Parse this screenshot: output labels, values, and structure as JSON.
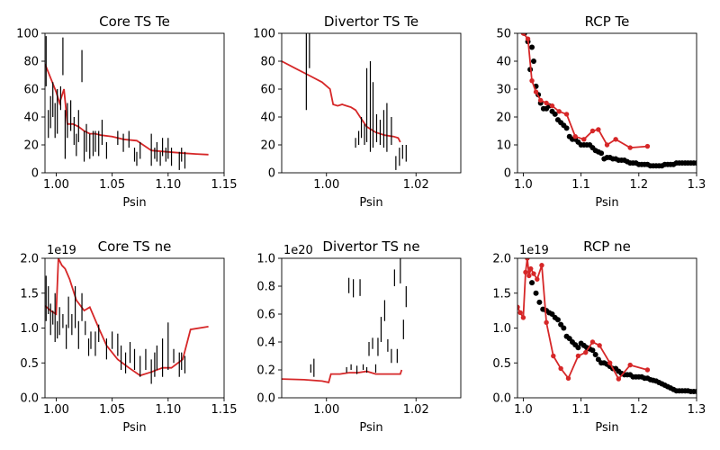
{
  "chart_data": [
    {
      "type": "line",
      "title": "Core TS Te",
      "xlabel": "Psin",
      "ylabel": "",
      "xlim": [
        0.99,
        1.15
      ],
      "ylim": [
        0,
        100
      ],
      "xticks": [
        1.0,
        1.05,
        1.1,
        1.15
      ],
      "xtick_labels": [
        "1.00",
        "1.05",
        "1.10",
        "1.15"
      ],
      "yticks": [
        0,
        20,
        40,
        60,
        80,
        100
      ],
      "ytick_labels": [
        "0",
        "20",
        "40",
        "60",
        "80",
        "100"
      ],
      "offset_label": "",
      "series": [
        {
          "kind": "fit_line",
          "color": "#d62728",
          "x": [
            0.99,
            0.995,
            1.0,
            1.003,
            1.007,
            1.01,
            1.015,
            1.02,
            1.025,
            1.03,
            1.035,
            1.04,
            1.05,
            1.06,
            1.072,
            1.085,
            1.1,
            1.115,
            1.125,
            1.136
          ],
          "y": [
            78,
            68,
            58,
            50,
            60,
            35,
            35,
            33,
            30,
            28,
            28,
            27,
            26,
            24,
            23,
            16,
            15,
            14,
            13.5,
            13
          ]
        },
        {
          "kind": "error_bars",
          "color": "#000000",
          "x": [
            0.991,
            0.993,
            0.995,
            0.997,
            0.999,
            1.001,
            1.004,
            1.006,
            1.008,
            1.01,
            1.013,
            1.016,
            1.018,
            1.02,
            1.023,
            1.025,
            1.027,
            1.03,
            1.033,
            1.035,
            1.038,
            1.041,
            1.045,
            1.055,
            1.06,
            1.065,
            1.07,
            1.072,
            1.075,
            1.085,
            1.088,
            1.09,
            1.093,
            1.095,
            1.098,
            1.1,
            1.103,
            1.11,
            1.112,
            1.115
          ],
          "low": [
            62,
            25,
            32,
            40,
            25,
            28,
            45,
            70,
            10,
            25,
            30,
            20,
            12,
            22,
            65,
            8,
            15,
            10,
            12,
            15,
            12,
            20,
            10,
            20,
            15,
            18,
            8,
            5,
            10,
            5,
            10,
            8,
            5,
            12,
            8,
            10,
            5,
            2,
            8,
            3
          ],
          "high": [
            98,
            45,
            55,
            65,
            50,
            60,
            62,
            97,
            45,
            50,
            52,
            40,
            28,
            45,
            88,
            30,
            35,
            28,
            30,
            30,
            30,
            38,
            22,
            30,
            28,
            30,
            18,
            15,
            22,
            28,
            18,
            22,
            15,
            25,
            18,
            25,
            18,
            15,
            18,
            15
          ]
        }
      ]
    },
    {
      "type": "line",
      "title": "Divertor TS Te",
      "xlabel": "Psin",
      "ylabel": "",
      "xlim": [
        0.99,
        1.03
      ],
      "ylim": [
        0,
        100
      ],
      "xticks": [
        1.0,
        1.02
      ],
      "xtick_labels": [
        "1.00",
        "1.02"
      ],
      "yticks": [
        0,
        20,
        40,
        60,
        80,
        100
      ],
      "ytick_labels": [
        "0",
        "20",
        "40",
        "60",
        "80",
        "100"
      ],
      "offset_label": "",
      "series": [
        {
          "kind": "fit_line",
          "color": "#d62728",
          "x": [
            0.99,
            0.993,
            0.996,
            0.999,
            1.0008,
            1.0015,
            1.0025,
            1.0035,
            1.0045,
            1.0055,
            1.0065,
            1.0075,
            1.009,
            1.011,
            1.013,
            1.015,
            1.016,
            1.0165
          ],
          "y": [
            80,
            75,
            70,
            65,
            60,
            49,
            48,
            49,
            48,
            47,
            45,
            40,
            33,
            29,
            27,
            26,
            25,
            22
          ]
        },
        {
          "kind": "error_bars",
          "color": "#000000",
          "x": [
            0.9955,
            0.9962,
            1.0065,
            1.0072,
            1.0078,
            1.0085,
            1.009,
            1.0098,
            1.0104,
            1.0112,
            1.012,
            1.0128,
            1.0135,
            1.0145,
            1.0155,
            1.0163,
            1.017,
            1.0178
          ],
          "low": [
            45,
            75,
            18,
            20,
            25,
            20,
            22,
            15,
            18,
            22,
            20,
            18,
            15,
            20,
            2,
            5,
            10,
            8
          ],
          "high": [
            100,
            100,
            25,
            30,
            40,
            35,
            75,
            80,
            65,
            42,
            38,
            45,
            50,
            40,
            12,
            18,
            20,
            20
          ]
        }
      ]
    },
    {
      "type": "scatter",
      "title": "RCP Te",
      "xlabel": "Psin",
      "ylabel": "",
      "xlim": [
        0.99,
        1.3
      ],
      "ylim": [
        0,
        50
      ],
      "xticks": [
        1.0,
        1.1,
        1.2,
        1.3
      ],
      "xtick_labels": [
        "1.0",
        "1.1",
        "1.2",
        "1.3"
      ],
      "yticks": [
        0,
        10,
        20,
        30,
        40,
        50
      ],
      "ytick_labels": [
        "0",
        "10",
        "20",
        "30",
        "40",
        "50"
      ],
      "offset_label": "",
      "series": [
        {
          "kind": "markers",
          "color": "#000000",
          "x": [
            1.002,
            1.008,
            1.012,
            1.015,
            1.018,
            1.022,
            1.026,
            1.03,
            1.035,
            1.04,
            1.045,
            1.05,
            1.055,
            1.06,
            1.065,
            1.07,
            1.075,
            1.08,
            1.085,
            1.09,
            1.095,
            1.1,
            1.105,
            1.11,
            1.115,
            1.12,
            1.125,
            1.13,
            1.135,
            1.14,
            1.145,
            1.15,
            1.155,
            1.16,
            1.165,
            1.17,
            1.175,
            1.18,
            1.185,
            1.19,
            1.195,
            1.2,
            1.205,
            1.21,
            1.215,
            1.22,
            1.225,
            1.23,
            1.235,
            1.24,
            1.245,
            1.25,
            1.255,
            1.26,
            1.265,
            1.27,
            1.275,
            1.28,
            1.285,
            1.29,
            1.295,
            1.3
          ],
          "y": [
            50,
            47,
            37,
            45,
            40,
            31,
            28,
            25,
            23,
            23,
            24,
            22,
            21,
            19,
            18,
            17,
            16,
            13,
            12,
            12,
            11,
            10,
            10,
            10,
            10,
            9,
            8,
            7.5,
            7,
            5,
            5.5,
            5.5,
            5,
            5,
            4.5,
            4.5,
            4.5,
            4,
            3.5,
            3.5,
            3.5,
            3,
            3,
            3,
            3,
            2.5,
            2.5,
            2.5,
            2.5,
            2.5,
            3,
            3,
            3,
            3,
            3.5,
            3.5,
            3.5,
            3.5,
            3.5,
            3.5,
            3.5,
            3.5
          ]
        },
        {
          "kind": "line_markers",
          "color": "#d62728",
          "x": [
            1.0,
            1.008,
            1.015,
            1.022,
            1.03,
            1.04,
            1.05,
            1.062,
            1.075,
            1.09,
            1.105,
            1.12,
            1.13,
            1.145,
            1.16,
            1.185,
            1.215
          ],
          "y": [
            50,
            48,
            33,
            29,
            26,
            25,
            24,
            22,
            21,
            13,
            12,
            15,
            15.5,
            10,
            12,
            9,
            9.5
          ]
        }
      ]
    },
    {
      "type": "line",
      "title": "Core TS ne",
      "xlabel": "Psin",
      "ylabel": "",
      "xlim": [
        0.99,
        1.15
      ],
      "ylim": [
        0,
        2.0
      ],
      "xticks": [
        1.0,
        1.05,
        1.1,
        1.15
      ],
      "xtick_labels": [
        "1.00",
        "1.05",
        "1.10",
        "1.15"
      ],
      "yticks": [
        0,
        0.5,
        1.0,
        1.5,
        2.0
      ],
      "ytick_labels": [
        "0.0",
        "0.5",
        "1.0",
        "1.5",
        "2.0"
      ],
      "offset_label": "1e19",
      "series": [
        {
          "kind": "fit_line",
          "color": "#d62728",
          "x": [
            0.99,
            0.995,
            1.0,
            1.002,
            1.005,
            1.008,
            1.012,
            1.018,
            1.025,
            1.03,
            1.038,
            1.045,
            1.055,
            1.065,
            1.075,
            1.085,
            1.095,
            1.103,
            1.113,
            1.12,
            1.136
          ],
          "y": [
            1.32,
            1.25,
            1.2,
            2.0,
            1.9,
            1.85,
            1.7,
            1.4,
            1.25,
            1.3,
            1.0,
            0.75,
            0.55,
            0.43,
            0.32,
            0.37,
            0.43,
            0.43,
            0.55,
            0.98,
            1.02
          ]
        },
        {
          "kind": "error_bars",
          "color": "#000000",
          "x": [
            0.991,
            0.993,
            0.995,
            0.997,
            0.999,
            1.001,
            1.003,
            1.006,
            1.009,
            1.011,
            1.014,
            1.017,
            1.02,
            1.023,
            1.026,
            1.029,
            1.031,
            1.035,
            1.038,
            1.045,
            1.05,
            1.055,
            1.058,
            1.062,
            1.066,
            1.07,
            1.075,
            1.08,
            1.085,
            1.088,
            1.09,
            1.095,
            1.1,
            1.105,
            1.11,
            1.112,
            1.115
          ],
          "low": [
            1.1,
            1.2,
            0.9,
            1.05,
            0.8,
            0.85,
            0.9,
            1.0,
            0.7,
            1.0,
            0.9,
            1.0,
            0.7,
            1.1,
            0.9,
            0.6,
            0.7,
            0.6,
            0.8,
            0.55,
            0.7,
            0.6,
            0.4,
            0.35,
            0.5,
            0.4,
            0.3,
            0.4,
            0.2,
            0.3,
            0.4,
            0.3,
            0.4,
            0.5,
            0.3,
            0.4,
            0.35
          ],
          "high": [
            1.75,
            1.6,
            1.35,
            1.25,
            1.5,
            1.1,
            1.3,
            1.2,
            1.05,
            1.45,
            1.2,
            1.6,
            1.1,
            1.5,
            1.1,
            0.85,
            0.95,
            0.95,
            1.05,
            0.85,
            0.95,
            0.92,
            0.75,
            0.65,
            0.8,
            0.7,
            0.6,
            0.7,
            0.55,
            0.65,
            0.75,
            0.85,
            1.08,
            0.7,
            0.65,
            0.65,
            0.6
          ]
        }
      ]
    },
    {
      "type": "line",
      "title": "Divertor TS ne",
      "xlabel": "Psin",
      "ylabel": "",
      "xlim": [
        0.99,
        1.03
      ],
      "ylim": [
        0,
        1.0
      ],
      "xticks": [
        1.0,
        1.02
      ],
      "xtick_labels": [
        "1.00",
        "1.02"
      ],
      "yticks": [
        0,
        0.2,
        0.4,
        0.6,
        0.8,
        1.0
      ],
      "ytick_labels": [
        "0.0",
        "0.2",
        "0.4",
        "0.6",
        "0.8",
        "1.0"
      ],
      "offset_label": "1e20",
      "series": [
        {
          "kind": "fit_line",
          "color": "#d62728",
          "x": [
            0.99,
            0.995,
            0.999,
            1.0005,
            1.001,
            1.003,
            1.005,
            1.007,
            1.009,
            1.011,
            1.013,
            1.015,
            1.0165,
            1.0168
          ],
          "y": [
            0.135,
            0.13,
            0.12,
            0.11,
            0.17,
            0.17,
            0.18,
            0.18,
            0.19,
            0.17,
            0.17,
            0.17,
            0.17,
            0.2
          ]
        },
        {
          "kind": "error_bars",
          "color": "#000000",
          "x": [
            0.9965,
            0.9972,
            1.0045,
            1.005,
            1.0055,
            1.006,
            1.0068,
            1.0075,
            1.0082,
            1.009,
            1.0095,
            1.0103,
            1.011,
            1.0115,
            1.0122,
            1.013,
            1.0137,
            1.0145,
            1.0152,
            1.0158,
            1.0165,
            1.0172,
            1.0178
          ],
          "low": [
            0.18,
            0.15,
            0.18,
            0.75,
            0.2,
            0.72,
            0.17,
            0.73,
            0.2,
            0.18,
            0.3,
            0.35,
            0.18,
            0.3,
            0.4,
            0.55,
            0.33,
            0.25,
            0.8,
            0.25,
            0.82,
            0.42,
            0.65
          ],
          "high": [
            0.24,
            0.28,
            0.22,
            0.86,
            0.24,
            0.85,
            0.23,
            0.85,
            0.24,
            0.22,
            0.4,
            0.43,
            0.24,
            0.43,
            0.58,
            0.7,
            0.42,
            0.35,
            0.92,
            0.35,
            1.0,
            0.56,
            0.8
          ]
        }
      ]
    },
    {
      "type": "scatter",
      "title": "RCP ne",
      "xlabel": "Psin",
      "ylabel": "",
      "xlim": [
        0.99,
        1.3
      ],
      "ylim": [
        0,
        2.0
      ],
      "xticks": [
        1.0,
        1.1,
        1.2,
        1.3
      ],
      "xtick_labels": [
        "1.0",
        "1.1",
        "1.2",
        "1.3"
      ],
      "yticks": [
        0,
        0.5,
        1.0,
        1.5,
        2.0
      ],
      "ytick_labels": [
        "0.0",
        "0.5",
        "1.0",
        "1.5",
        "2.0"
      ],
      "offset_label": "1e19",
      "series": [
        {
          "kind": "markers",
          "color": "#000000",
          "x": [
            1.015,
            1.022,
            1.028,
            1.034,
            1.04,
            1.045,
            1.05,
            1.055,
            1.06,
            1.065,
            1.07,
            1.075,
            1.08,
            1.085,
            1.09,
            1.095,
            1.1,
            1.105,
            1.11,
            1.115,
            1.12,
            1.125,
            1.13,
            1.135,
            1.14,
            1.145,
            1.15,
            1.155,
            1.16,
            1.165,
            1.17,
            1.175,
            1.18,
            1.185,
            1.19,
            1.195,
            1.2,
            1.205,
            1.21,
            1.215,
            1.22,
            1.225,
            1.23,
            1.235,
            1.24,
            1.245,
            1.25,
            1.255,
            1.26,
            1.265,
            1.27,
            1.275,
            1.28,
            1.285,
            1.29,
            1.295,
            1.3
          ],
          "y": [
            1.65,
            1.5,
            1.37,
            1.27,
            1.25,
            1.22,
            1.2,
            1.15,
            1.12,
            1.05,
            1.0,
            0.88,
            0.85,
            0.8,
            0.76,
            0.72,
            0.78,
            0.75,
            0.72,
            0.7,
            0.68,
            0.62,
            0.55,
            0.5,
            0.5,
            0.48,
            0.45,
            0.42,
            0.42,
            0.38,
            0.35,
            0.33,
            0.33,
            0.33,
            0.3,
            0.3,
            0.3,
            0.3,
            0.28,
            0.28,
            0.26,
            0.25,
            0.24,
            0.22,
            0.2,
            0.18,
            0.16,
            0.14,
            0.12,
            0.1,
            0.1,
            0.1,
            0.1,
            0.1,
            0.09,
            0.09,
            0.09
          ]
        },
        {
          "kind": "line_markers",
          "color": "#d62728",
          "x": [
            0.99,
            0.995,
            1.0,
            1.004,
            1.007,
            1.01,
            1.013,
            1.018,
            1.024,
            1.032,
            1.04,
            1.052,
            1.065,
            1.078,
            1.095,
            1.108,
            1.12,
            1.132,
            1.15,
            1.165,
            1.185,
            1.215
          ],
          "y": [
            1.3,
            1.22,
            1.15,
            1.8,
            2.0,
            1.75,
            1.85,
            1.78,
            1.7,
            1.9,
            1.08,
            0.6,
            0.42,
            0.28,
            0.6,
            0.65,
            0.8,
            0.75,
            0.5,
            0.27,
            0.47,
            0.4
          ]
        }
      ]
    }
  ]
}
